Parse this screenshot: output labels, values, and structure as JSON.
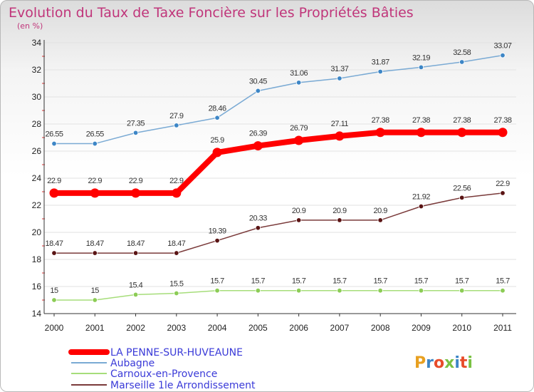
{
  "chart_data": {
    "type": "line",
    "title": "Evolution du Taux de Taxe Foncière sur les Propriétés Bâties",
    "subtitle": "(en %)",
    "x": [
      "2000",
      "2001",
      "2002",
      "2003",
      "2004",
      "2005",
      "2006",
      "2007",
      "2008",
      "2009",
      "2010",
      "2011"
    ],
    "ylim": [
      14,
      34
    ],
    "yticks": [
      14,
      16,
      18,
      20,
      22,
      24,
      26,
      28,
      30,
      32,
      34
    ],
    "grid": "horizontal",
    "series": [
      {
        "name": "LA PENNE-SUR-HUVEAUNE",
        "color": "#ff0000",
        "highlight": true,
        "values": [
          22.9,
          22.9,
          22.9,
          22.9,
          25.9,
          26.39,
          26.79,
          27.11,
          27.38,
          27.38,
          27.38,
          27.38
        ],
        "labels": [
          "22.9",
          "22.9",
          "22.9",
          "22.9",
          "25.9",
          "26.39",
          "26.79",
          "27.11",
          "27.38",
          "27.38",
          "27.38",
          "27.38"
        ]
      },
      {
        "name": "Aubagne",
        "color": "#7aaad4",
        "marker": "#3d86c6",
        "values": [
          26.55,
          26.55,
          27.35,
          27.9,
          28.46,
          30.45,
          31.06,
          31.37,
          31.87,
          32.19,
          32.58,
          33.07
        ],
        "labels": [
          "26.55",
          "26.55",
          "27.35",
          "27.9",
          "28.46",
          "30.45",
          "31.06",
          "31.37",
          "31.87",
          "32.19",
          "32.58",
          "33.07"
        ]
      },
      {
        "name": "Carnoux-en-Provence",
        "color": "#a6dd7a",
        "marker": "#8ccc55",
        "values": [
          15,
          15,
          15.4,
          15.5,
          15.7,
          15.7,
          15.7,
          15.7,
          15.7,
          15.7,
          15.7,
          15.7
        ],
        "labels": [
          "15",
          "15",
          "15.4",
          "15.5",
          "15.7",
          "15.7",
          "15.7",
          "15.7",
          "15.7",
          "15.7",
          "15.7",
          "15.7"
        ]
      },
      {
        "name": "Marseille 1le  Arrondissement",
        "color": "#7a3a3a",
        "marker": "#5a1414",
        "values": [
          18.47,
          18.47,
          18.47,
          18.47,
          19.39,
          20.33,
          20.9,
          20.9,
          20.9,
          21.92,
          22.56,
          22.9
        ],
        "labels": [
          "18.47",
          "18.47",
          "18.47",
          "18.47",
          "19.39",
          "20.33",
          "20.9",
          "20.9",
          "20.9",
          "21.92",
          "22.56",
          "22.9"
        ]
      }
    ]
  },
  "logo": {
    "text": "Proxiti",
    "colors": [
      "#e8a020",
      "#3d86c6",
      "#e84c2a",
      "#7ac143",
      "#3d86c6",
      "#e84c2a",
      "#7ac143"
    ]
  }
}
